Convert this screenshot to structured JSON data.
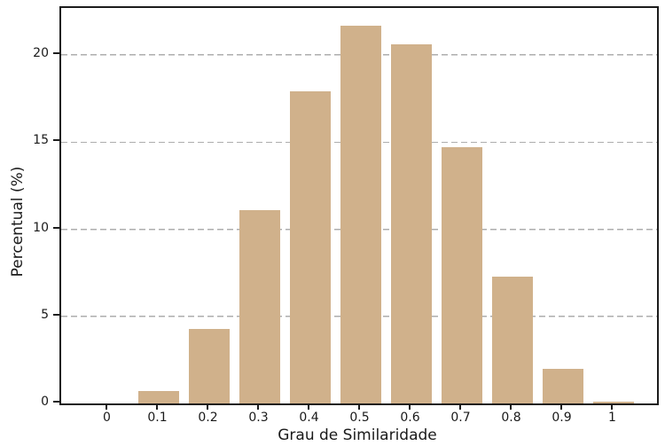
{
  "chart_data": {
    "type": "bar",
    "title": "",
    "xlabel": "Grau de Similaridade",
    "ylabel": "Percentual (%)",
    "categories": [
      "0",
      "0.1",
      "0.2",
      "0.3",
      "0.4",
      "0.5",
      "0.6",
      "0.7",
      "0.8",
      "0.9",
      "1"
    ],
    "values": [
      0,
      0.7,
      4.3,
      11.1,
      17.9,
      21.7,
      20.6,
      14.7,
      7.3,
      2.0,
      0.1
    ],
    "yticks": [
      0,
      5,
      10,
      15,
      20
    ],
    "ylim": [
      0,
      22.7
    ],
    "grid": "horizontal-dashed",
    "legend": "none",
    "colors": {
      "bar": "#d0b18b",
      "gridline": "#aeaeae",
      "spine": "#1c1c1c",
      "text": "#1a1a1a",
      "background": "#ffffff"
    }
  }
}
